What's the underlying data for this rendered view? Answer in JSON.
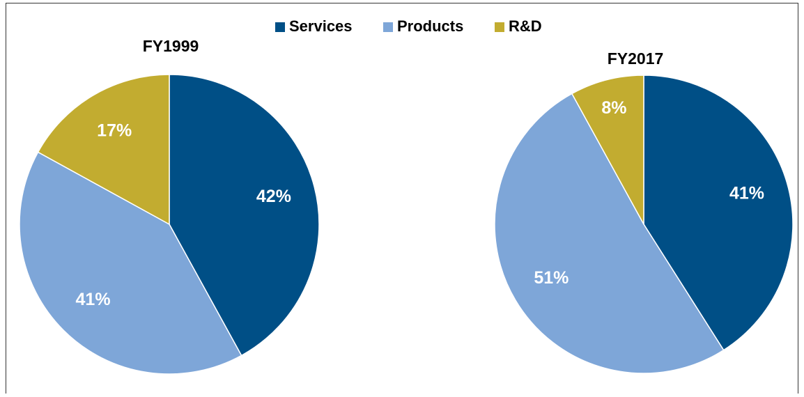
{
  "legend": {
    "categories": [
      "Services",
      "Products",
      "R&D"
    ],
    "colors": [
      "#004f86",
      "#7ea6d8",
      "#c2ac30"
    ]
  },
  "chart_data": [
    {
      "type": "pie",
      "title": "FY1999",
      "values": [
        42,
        41,
        17
      ],
      "value_labels": [
        "42%",
        "41%",
        "17%"
      ]
    },
    {
      "type": "pie",
      "title": "FY2017",
      "values": [
        41,
        51,
        8
      ],
      "value_labels": [
        "41%",
        "51%",
        "8%"
      ]
    }
  ]
}
